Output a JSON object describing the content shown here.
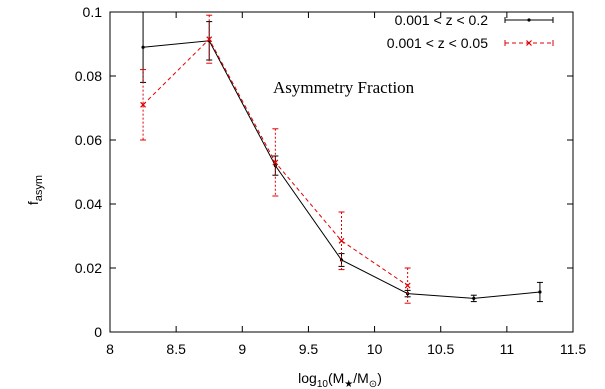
{
  "chart_data": {
    "type": "line",
    "title": "",
    "annotation": "Asymmetry Fraction",
    "ylabel": {
      "base": "f",
      "sub": "asym"
    },
    "xlabel": {
      "pre": "log",
      "sub1": "10",
      "mid": "(M",
      "star": "★",
      "slash": "/M",
      "sun": "⊙",
      "post": ")"
    },
    "xlim": [
      8,
      11.5
    ],
    "ylim": [
      0,
      0.1
    ],
    "xticks": [
      "8",
      "8.5",
      "9",
      "9.5",
      "10",
      "10.5",
      "11",
      "11.5"
    ],
    "yticks": [
      "0",
      "0.02",
      "0.04",
      "0.06",
      "0.08",
      "0.1"
    ],
    "legend_position": "top-right",
    "series": [
      {
        "name": "0.001 < z < 0.2",
        "color": "#000000",
        "style": "solid",
        "marker": "dot",
        "x": [
          8.25,
          8.75,
          9.25,
          9.75,
          10.25,
          10.75,
          11.25
        ],
        "y": [
          0.089,
          0.091,
          0.052,
          0.0225,
          0.012,
          0.0105,
          0.0125
        ],
        "err": [
          0.011,
          0.006,
          0.003,
          0.002,
          0.001,
          0.001,
          0.003
        ]
      },
      {
        "name": "0.001 < z < 0.05",
        "color": "#e00000",
        "style": "dashed",
        "marker": "x",
        "x": [
          8.25,
          8.75,
          9.25,
          9.75,
          10.25
        ],
        "y": [
          0.071,
          0.0915,
          0.053,
          0.0285,
          0.0145
        ],
        "err": [
          0.011,
          0.0075,
          0.0105,
          0.009,
          0.0055
        ]
      }
    ]
  }
}
